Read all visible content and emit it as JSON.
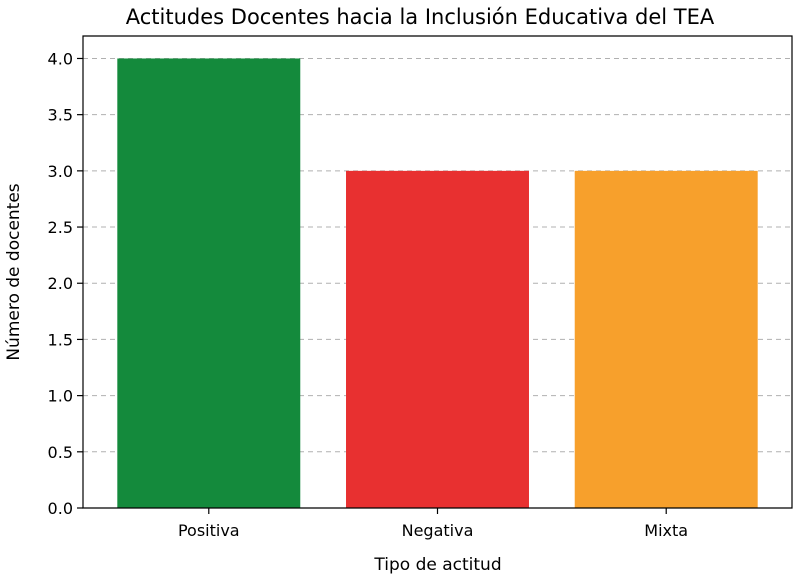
{
  "chart_data": {
    "type": "bar",
    "title": "Actitudes Docentes hacia la Inclusión Educativa del TEA",
    "xlabel": "Tipo de actitud",
    "ylabel": "Número de docentes",
    "categories": [
      "Positiva",
      "Negativa",
      "Mixta"
    ],
    "values": [
      4,
      3,
      3
    ],
    "colors": [
      "#148a3c",
      "#e83030",
      "#f7a02c"
    ],
    "ylim": [
      0,
      4.2
    ],
    "yticks": [
      0.0,
      0.5,
      1.0,
      1.5,
      2.0,
      2.5,
      3.0,
      3.5,
      4.0
    ],
    "ytick_labels": [
      "0.0",
      "0.5",
      "1.0",
      "1.5",
      "2.0",
      "2.5",
      "3.0",
      "3.5",
      "4.0"
    ],
    "grid": "y-dashed",
    "legend": "none"
  }
}
